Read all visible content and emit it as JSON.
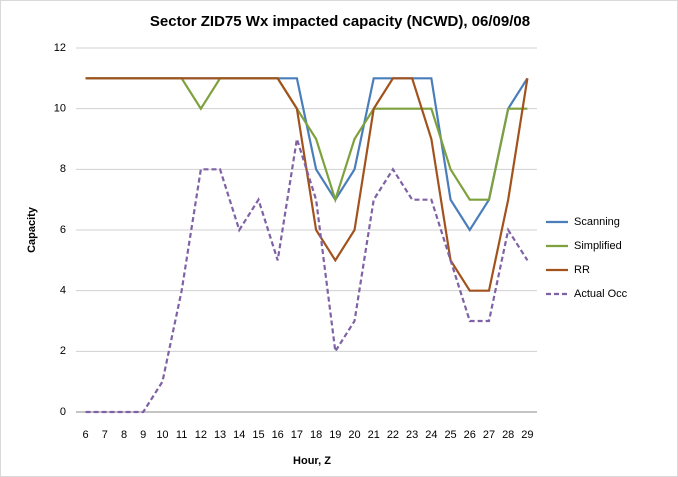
{
  "chart_data": {
    "type": "line",
    "title": "Sector ZID75 Wx impacted capacity (NCWD), 06/09/08",
    "x_label": "Hour, Z",
    "y_label": "Capacity",
    "categories": [
      6,
      7,
      8,
      9,
      10,
      11,
      12,
      13,
      14,
      15,
      16,
      17,
      18,
      19,
      20,
      21,
      22,
      23,
      24,
      25,
      26,
      27,
      28,
      29
    ],
    "series": [
      {
        "name": "Scanning",
        "color": "#4a7ebb",
        "dash": false,
        "values": [
          11,
          11,
          11,
          11,
          11,
          11,
          11,
          11,
          11,
          11,
          11,
          11,
          8,
          7,
          8,
          11,
          11,
          11,
          11,
          7,
          6,
          7,
          10,
          11
        ]
      },
      {
        "name": "Simplified",
        "color": "#7ea13d",
        "dash": false,
        "values": [
          11,
          11,
          11,
          11,
          11,
          11,
          10,
          11,
          11,
          11,
          11,
          10,
          9,
          7,
          9,
          10,
          10,
          10,
          10,
          8,
          7,
          7,
          10,
          10
        ]
      },
      {
        "name": "RR",
        "color": "#a2531d",
        "dash": false,
        "values": [
          11,
          11,
          11,
          11,
          11,
          11,
          11,
          11,
          11,
          11,
          11,
          10,
          6,
          5,
          6,
          10,
          11,
          11,
          9,
          5,
          4,
          4,
          7,
          11
        ]
      },
      {
        "name": "Actual Occ",
        "color": "#7f62a5",
        "dash": true,
        "values": [
          0,
          0,
          0,
          0,
          1,
          4,
          8,
          8,
          6,
          7,
          5,
          9,
          7,
          2,
          3,
          7,
          8,
          7,
          7,
          5,
          3,
          3,
          6,
          5
        ]
      }
    ],
    "ylim": [
      0,
      12
    ],
    "yticks": [
      0,
      2,
      4,
      6,
      8,
      10,
      12
    ],
    "grid": true,
    "legend": "right"
  }
}
